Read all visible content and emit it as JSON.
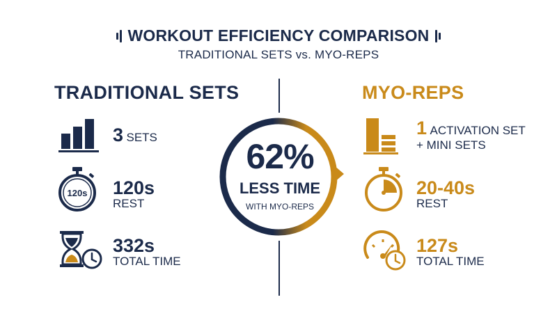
{
  "header": {
    "title": "WORKOUT EFFICIENCY COMPARISON",
    "subtitle": "TRADITIONAL SETS vs. MYO-REPS"
  },
  "traditional": {
    "heading": "TRADITIONAL SETS",
    "sets": {
      "value": "3",
      "label": "SETS",
      "icon": "bar-chart-icon"
    },
    "rest": {
      "value": "120s",
      "label": "REST",
      "timer_text": "120s",
      "icon": "stopwatch-icon"
    },
    "total": {
      "value": "332s",
      "label": "TOTAL TIME",
      "icon": "hourglass-clock-icon"
    }
  },
  "myo": {
    "heading": "MYO-REPS",
    "sets": {
      "value": "1",
      "label": "ACTIVATION SET",
      "label2": "+ MINI SETS",
      "icon": "activation-blocks-icon"
    },
    "rest": {
      "value": "20-40s",
      "label": "REST",
      "icon": "stopwatch-icon"
    },
    "total": {
      "value": "127s",
      "label": "TOTAL TIME",
      "icon": "speedometer-clock-icon"
    }
  },
  "center": {
    "percent": "62%",
    "line1": "LESS TIME",
    "line2": "WITH MYO-REPS"
  },
  "colors": {
    "navy": "#1b2a4a",
    "gold": "#c98a1a"
  }
}
